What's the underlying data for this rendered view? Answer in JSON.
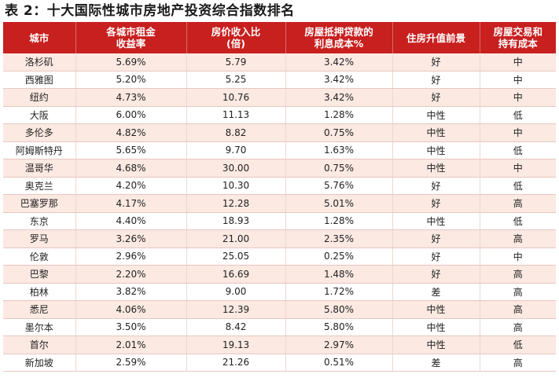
{
  "title": "表 2：十大国际性城市房地产投资综合指数排名",
  "headers": [
    [
      "城市"
    ],
    [
      "各城市租金",
      "收益率"
    ],
    [
      "房价收入比",
      "(倍)"
    ],
    [
      "房屋抵押贷款的",
      "利息成本%"
    ],
    [
      "住房升值前景"
    ],
    [
      "房屋交易和",
      "持有成本"
    ]
  ],
  "rows": [
    [
      "洛杉矶",
      "5.69%",
      "5.79",
      "3.42%",
      "好",
      "中"
    ],
    [
      "西雅图",
      "5.20%",
      "5.25",
      "3.42%",
      "好",
      "中"
    ],
    [
      "纽约",
      "4.73%",
      "10.76",
      "3.42%",
      "好",
      "中"
    ],
    [
      "大阪",
      "6.00%",
      "11.13",
      "1.28%",
      "中性",
      "低"
    ],
    [
      "多伦多",
      "4.82%",
      "8.82",
      "0.75%",
      "中性",
      "中"
    ],
    [
      "阿姆斯特丹",
      "5.65%",
      "9.70",
      "1.63%",
      "中性",
      "低"
    ],
    [
      "温哥华",
      "4.68%",
      "30.00",
      "0.75%",
      "中性",
      "中"
    ],
    [
      "奥克兰",
      "4.20%",
      "10.30",
      "5.76%",
      "好",
      "低"
    ],
    [
      "巴塞罗那",
      "4.17%",
      "12.28",
      "5.01%",
      "好",
      "高"
    ],
    [
      "东京",
      "4.40%",
      "18.93",
      "1.28%",
      "中性",
      "低"
    ],
    [
      "罗马",
      "3.26%",
      "21.00",
      "2.35%",
      "好",
      "高"
    ],
    [
      "伦敦",
      "2.96%",
      "25.05",
      "0.25%",
      "好",
      "中"
    ],
    [
      "巴黎",
      "2.20%",
      "16.69",
      "1.48%",
      "好",
      "高"
    ],
    [
      "柏林",
      "3.82%",
      "9.00",
      "1.72%",
      "差",
      "高"
    ],
    [
      "悉尼",
      "4.06%",
      "12.39",
      "5.80%",
      "中性",
      "高"
    ],
    [
      "墨尔本",
      "3.50%",
      "8.42",
      "5.80%",
      "中性",
      "高"
    ],
    [
      "首尔",
      "2.01%",
      "19.13",
      "2.97%",
      "中性",
      "低"
    ],
    [
      "新加坡",
      "2.59%",
      "21.26",
      "0.51%",
      "差",
      "高"
    ]
  ],
  "colors": {
    "header_bg": "#c8201f",
    "header_text": "#ffffff",
    "row_alt_bg": "#fbe9e2"
  }
}
